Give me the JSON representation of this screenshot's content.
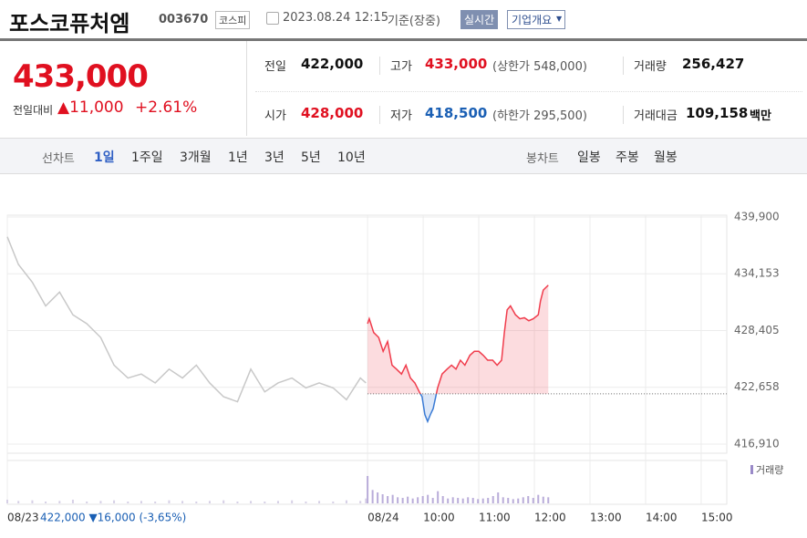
{
  "header": {
    "name": "포스코퓨처엠",
    "code": "003670",
    "market": "코스피",
    "datetime": "2023.08.24 12:15",
    "status": "기준(장중)",
    "realtime": "실시간",
    "company_info": "기업개요"
  },
  "quote": {
    "price": "433,000",
    "change_label": "전일대비",
    "change": "▲11,000",
    "change_pct": "+2.61%"
  },
  "stats": [
    {
      "label": "전일",
      "value": "422,000"
    },
    {
      "label": "고가",
      "value": "433,000",
      "note": "(상한가 548,000)"
    },
    {
      "label": "거래량",
      "value": "256,427"
    },
    {
      "label": "시가",
      "value": "428,000"
    },
    {
      "label": "저가",
      "value": "418,500",
      "note": "(하한가 295,500)"
    },
    {
      "label": "거래대금",
      "value": "109,158",
      "unit": "백만"
    }
  ],
  "tabs": {
    "line_label": "선차트",
    "line": [
      "1일",
      "1주일",
      "3개월",
      "1년",
      "3년",
      "5년",
      "10년"
    ],
    "candle_label": "봉차트",
    "candle": [
      "일봉",
      "주봉",
      "월봉"
    ]
  },
  "chart_data": {
    "type": "line",
    "xlim": [
      2.52,
      15.46
    ],
    "ylim": [
      416910,
      439900
    ],
    "yticks": [
      {
        "value": 439900,
        "label": "439,900"
      },
      {
        "value": 434153,
        "label": "434,153"
      },
      {
        "value": 428405,
        "label": "428,405"
      },
      {
        "value": 422658,
        "label": "422,658"
      },
      {
        "value": 416910,
        "label": "416,910"
      }
    ],
    "xticks": [
      {
        "value": 2.52,
        "label": "08/23"
      },
      {
        "value": 9,
        "label": "08/24"
      },
      {
        "value": 10,
        "label": "10:00"
      },
      {
        "value": 11,
        "label": "11:00"
      },
      {
        "value": 12,
        "label": "12:00"
      },
      {
        "value": 13,
        "label": "13:00"
      },
      {
        "value": 14,
        "label": "14:00"
      },
      {
        "value": 15,
        "label": "15:00"
      }
    ],
    "grid": true,
    "baseline": 422000,
    "series": [
      {
        "color": "#c8c8c8",
        "x": [
          2.52,
          2.72,
          2.97,
          3.21,
          3.46,
          3.7,
          3.95,
          4.2,
          4.44,
          4.69,
          4.93,
          5.18,
          5.43,
          5.67,
          5.92,
          6.16,
          6.41,
          6.66,
          6.9,
          7.15,
          7.39,
          7.64,
          7.89,
          8.13,
          8.38,
          8.62,
          8.87,
          8.97
        ],
        "values": [
          437900,
          435100,
          433300,
          430900,
          432300,
          430000,
          429100,
          427700,
          424900,
          423600,
          424000,
          423100,
          424500,
          423600,
          424900,
          423100,
          421700,
          421200,
          424500,
          422200,
          423100,
          423600,
          422600,
          423100,
          422600,
          421400,
          423600,
          423100
        ]
      },
      {
        "color": "#f03c4c",
        "down_color": "#3a7bd5",
        "x": [
          9.0,
          9.03,
          9.11,
          9.2,
          9.28,
          9.36,
          9.44,
          9.52,
          9.61,
          9.69,
          9.77,
          9.85,
          9.93,
          9.98,
          10.03,
          10.08,
          10.13,
          10.18,
          10.26,
          10.34,
          10.43,
          10.51,
          10.59,
          10.67,
          10.75,
          10.84,
          10.92,
          11.0,
          11.08,
          11.16,
          11.25,
          11.33,
          11.41,
          11.46,
          11.51,
          11.57,
          11.66,
          11.74,
          11.82,
          11.9,
          11.98,
          12.07,
          12.11,
          12.16,
          12.25
        ],
        "values": [
          429100,
          429600,
          428200,
          427700,
          426300,
          427300,
          424900,
          424500,
          424000,
          424900,
          423600,
          423100,
          422200,
          421700,
          419900,
          419200,
          419900,
          420500,
          422600,
          424000,
          424500,
          424900,
          424500,
          425400,
          424900,
          425900,
          426300,
          426300,
          425900,
          425400,
          425400,
          424900,
          425400,
          428200,
          430500,
          430900,
          430000,
          429600,
          429700,
          429400,
          429600,
          430000,
          431400,
          432500,
          433000
        ]
      }
    ],
    "volume": {
      "name": "거래량",
      "ylim": [
        0,
        60
      ],
      "color": "#b9acd9",
      "values": [
        6,
        4,
        5,
        3,
        4,
        6,
        3,
        4,
        5,
        3,
        4,
        3,
        5,
        4,
        3,
        4,
        5,
        3,
        4,
        3,
        4,
        5,
        3,
        4,
        3,
        5,
        4,
        8,
        45,
        22,
        18,
        15,
        12,
        14,
        10,
        9,
        11,
        8,
        10,
        12,
        14,
        9,
        20,
        12,
        8,
        10,
        9,
        8,
        10,
        9,
        7,
        8,
        9,
        12,
        18,
        10,
        9,
        7,
        8,
        10,
        12,
        9,
        14,
        11,
        10
      ]
    },
    "prev_summary": "422,000 ▼16,000 (-3,65%)"
  }
}
